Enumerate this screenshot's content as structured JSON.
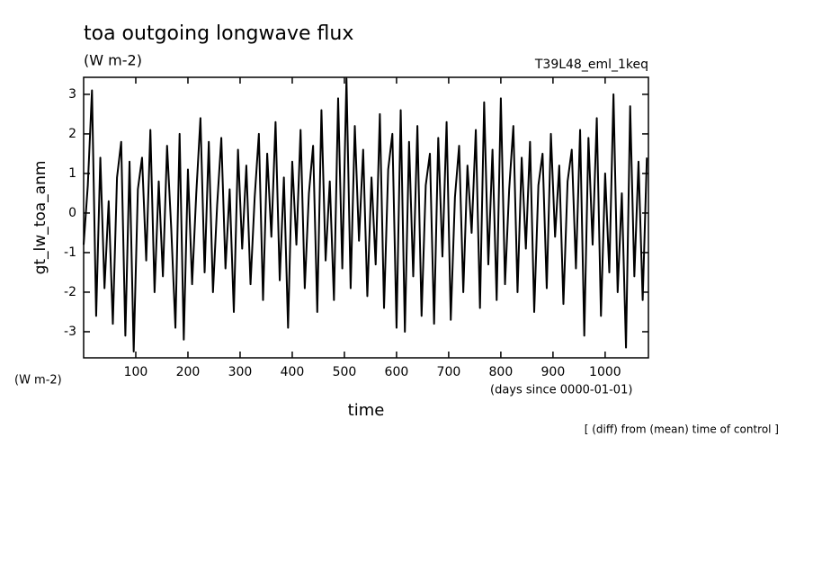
{
  "chart_data": {
    "type": "line",
    "title": "toa outgoing longwave flux",
    "subtitle": "(W m-2)",
    "run_label": "T39L48_eml_1keq",
    "y_label": "gt_lw_toa_anm",
    "y_units": "(W m-2)",
    "x_label": "time",
    "x_units": "(days since 0000-01-01)",
    "note": "[ (diff) from (mean) time of control ]",
    "color": "#000000",
    "x": [
      0,
      8,
      16,
      24,
      32,
      40,
      48,
      56,
      64,
      72,
      80,
      88,
      96,
      104,
      112,
      120,
      128,
      136,
      144,
      152,
      160,
      168,
      176,
      184,
      192,
      200,
      208,
      216,
      224,
      232,
      240,
      248,
      256,
      264,
      272,
      280,
      288,
      296,
      304,
      312,
      320,
      328,
      336,
      344,
      352,
      360,
      368,
      376,
      384,
      392,
      400,
      408,
      416,
      424,
      432,
      440,
      448,
      456,
      464,
      472,
      480,
      488,
      496,
      504,
      512,
      520,
      528,
      536,
      544,
      552,
      560,
      568,
      576,
      584,
      592,
      600,
      608,
      616,
      624,
      632,
      640,
      648,
      656,
      664,
      672,
      680,
      688,
      696,
      704,
      712,
      720,
      728,
      736,
      744,
      752,
      760,
      768,
      776,
      784,
      792,
      800,
      808,
      816,
      824,
      832,
      840,
      848,
      856,
      864,
      872,
      880,
      888,
      896,
      904,
      912,
      920,
      928,
      936,
      944,
      952,
      960,
      968,
      976,
      984,
      992,
      1000,
      1008,
      1016,
      1024,
      1032,
      1040,
      1048,
      1056,
      1064,
      1072,
      1080
    ],
    "values": [
      -0.8,
      0.7,
      3.1,
      -2.6,
      1.4,
      -1.9,
      0.3,
      -2.8,
      0.9,
      1.8,
      -3.1,
      1.3,
      -3.5,
      0.6,
      1.4,
      -1.2,
      2.1,
      -2.0,
      0.8,
      -1.6,
      1.7,
      -0.4,
      -2.9,
      2.0,
      -3.2,
      1.1,
      -1.8,
      0.5,
      2.4,
      -1.5,
      1.8,
      -2.0,
      0.2,
      1.9,
      -1.4,
      0.6,
      -2.5,
      1.6,
      -0.9,
      1.2,
      -1.8,
      0.4,
      2.0,
      -2.2,
      1.5,
      -0.6,
      2.3,
      -1.7,
      0.9,
      -2.9,
      1.3,
      -0.8,
      2.1,
      -1.9,
      0.5,
      1.7,
      -2.5,
      2.6,
      -1.2,
      0.8,
      -2.2,
      2.9,
      -1.4,
      3.4,
      -1.9,
      2.2,
      -0.7,
      1.6,
      -2.1,
      0.9,
      -1.3,
      2.5,
      -2.4,
      1.1,
      2.0,
      -2.9,
      2.6,
      -3.0,
      1.8,
      -1.6,
      2.2,
      -2.6,
      0.7,
      1.5,
      -2.8,
      1.9,
      -1.1,
      2.3,
      -2.7,
      0.4,
      1.7,
      -2.0,
      1.2,
      -0.5,
      2.1,
      -2.4,
      2.8,
      -1.3,
      1.6,
      -2.2,
      2.9,
      -1.8,
      0.6,
      2.2,
      -2.0,
      1.4,
      -0.9,
      1.8,
      -2.5,
      0.7,
      1.5,
      -1.9,
      2.0,
      -0.6,
      1.2,
      -2.3,
      0.8,
      1.6,
      -1.4,
      2.1,
      -3.1,
      1.9,
      -0.8,
      2.4,
      -2.6,
      1.0,
      -1.5,
      3.0,
      -2.0,
      0.5,
      -3.4,
      2.7,
      -1.6,
      1.3,
      -2.2,
      1.4
    ],
    "xlim": [
      0,
      1083
    ],
    "ylim": [
      -3.66,
      3.43
    ],
    "xticks": [
      100,
      200,
      300,
      400,
      500,
      600,
      700,
      800,
      900,
      1000
    ],
    "yticks": [
      -3,
      -2,
      -1,
      0,
      1,
      2,
      3
    ]
  }
}
